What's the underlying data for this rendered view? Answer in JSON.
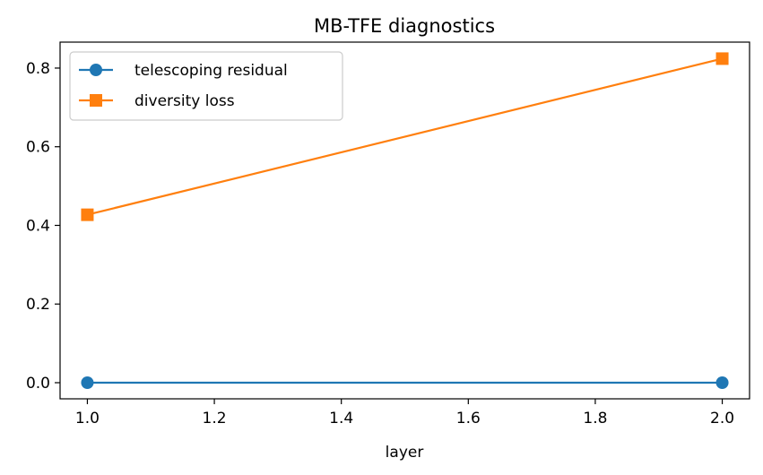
{
  "chart_data": {
    "type": "line",
    "title": "MB-TFE diagnostics",
    "xlabel": "layer",
    "ylabel": "",
    "x": [
      1.0,
      2.0
    ],
    "xlim": [
      0.957,
      2.043
    ],
    "ylim": [
      -0.041,
      0.866
    ],
    "xticks": [
      "1.0",
      "1.2",
      "1.4",
      "1.6",
      "1.8",
      "2.0"
    ],
    "yticks": [
      "0.0",
      "0.2",
      "0.4",
      "0.6",
      "0.8"
    ],
    "grid": false,
    "legend_position": "top-left",
    "series": [
      {
        "name": "telescoping residual",
        "marker": "circle",
        "color": "#1f77b4",
        "values": [
          0.0,
          0.0
        ]
      },
      {
        "name": "diversity loss",
        "marker": "square",
        "color": "#ff7f0e",
        "values": [
          0.427,
          0.824
        ]
      }
    ]
  }
}
